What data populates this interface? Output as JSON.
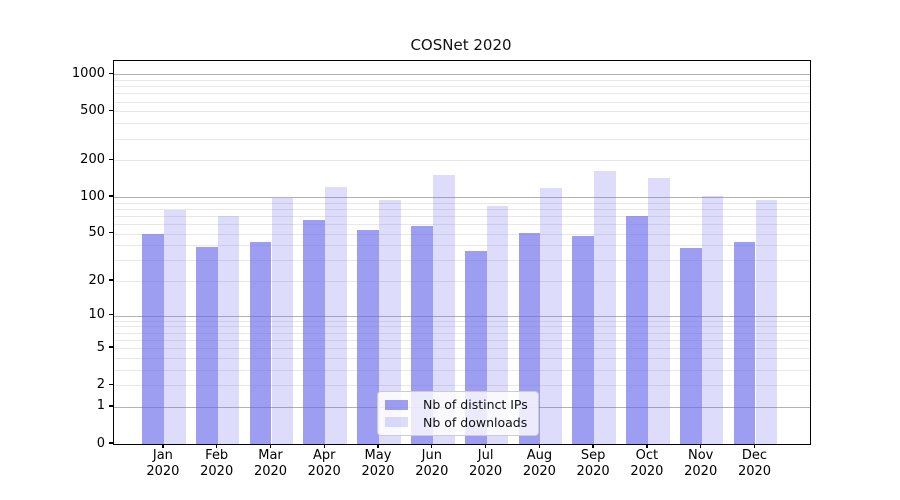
{
  "chart_data": {
    "type": "bar",
    "title": "COSNet 2020",
    "yscale": "log10(value+1)",
    "categories": [
      "Jan",
      "Feb",
      "Mar",
      "Apr",
      "May",
      "Jun",
      "Jul",
      "Aug",
      "Sep",
      "Oct",
      "Nov",
      "Dec"
    ],
    "x_tick_year": "2020",
    "series": [
      {
        "name": "Nb of distinct IPs",
        "color": "rgba(102,102,235,0.64)",
        "values": [
          50,
          39,
          43,
          65,
          54,
          58,
          36,
          51,
          48,
          70,
          38,
          43
        ]
      },
      {
        "name": "Nb of downloads",
        "color": "rgba(102,102,235,0.22)",
        "values": [
          78,
          70,
          99,
          122,
          95,
          153,
          84,
          119,
          163,
          144,
          103,
          95
        ]
      }
    ],
    "yticks": [
      0,
      1,
      2,
      5,
      10,
      20,
      50,
      100,
      200,
      500,
      1000
    ],
    "ylim": [
      0,
      1280
    ],
    "grid": {
      "major_color": "#b2b2b2",
      "minor_color": "#e8e8e8",
      "major_at": [
        1,
        10,
        100,
        1000
      ]
    },
    "legend_position": "lower-center"
  }
}
